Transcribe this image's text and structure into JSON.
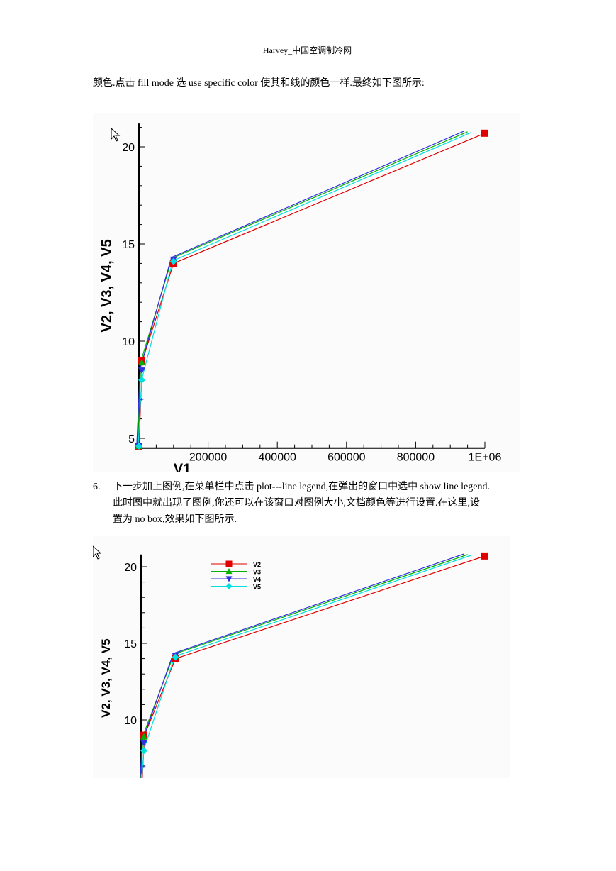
{
  "header": {
    "text": "Harvey_中国空调制冷网"
  },
  "para1": {
    "text": "颜色.点击 fill mode  选 use specific color 使其和线的颜色一样.最终如下图所示:"
  },
  "para2": {
    "number": "6.",
    "lines": [
      "下一步加上图例,在菜单栏中点击 plot---line legend,在弹出的窗口中选中 show line legend.",
      "此时图中就出现了图例,你还可以在该窗口对图例大小,文档颜色等进行设置.在这里,设",
      "置为  no box,效果如下图所示."
    ]
  },
  "chart_data": [
    {
      "type": "line",
      "xlabel": "V1",
      "ylabel": "V2, V3, V4, V5",
      "xlim": [
        0,
        1000000
      ],
      "ylim": [
        4.5,
        21.2
      ],
      "x_tick_labels": [
        "200000",
        "400000",
        "600000",
        "800000",
        "1E+06"
      ],
      "y_tick_labels": [
        "5",
        "10",
        "15",
        "20"
      ],
      "legend": "none",
      "series": [
        {
          "name": "V2",
          "color": "#e00000",
          "marker": "square",
          "x": [
            0,
            10000,
            100000,
            1000000
          ],
          "y": [
            4.6,
            9.0,
            14.0,
            20.7
          ]
        },
        {
          "name": "V3",
          "color": "#00b000",
          "marker": "triangle",
          "x": [
            0,
            10000,
            100000,
            950000
          ],
          "y": [
            4.6,
            8.9,
            14.2,
            20.7
          ]
        },
        {
          "name": "V4",
          "color": "#3030e0",
          "marker": "triangle-down",
          "x": [
            0,
            10000,
            100000,
            940000
          ],
          "y": [
            4.6,
            8.5,
            14.2,
            20.7
          ]
        },
        {
          "name": "V5",
          "color": "#00e0e0",
          "marker": "diamond",
          "x": [
            0,
            10000,
            100000,
            960000
          ],
          "y": [
            4.6,
            8.0,
            14.1,
            20.7
          ]
        }
      ]
    },
    {
      "type": "line",
      "ylabel": "V2, V3, V4, V5",
      "xlim": [
        0,
        1000000
      ],
      "ylim": [
        6.5,
        20.8
      ],
      "y_tick_labels": [
        "10",
        "15",
        "20"
      ],
      "legend": "top-left, no box",
      "series": [
        {
          "name": "V2",
          "color": "#e00000",
          "marker": "square",
          "x": [
            0,
            10000,
            100000,
            1000000
          ],
          "y": [
            4.6,
            9.0,
            14.0,
            20.7
          ]
        },
        {
          "name": "V3",
          "color": "#00b000",
          "marker": "triangle",
          "x": [
            0,
            10000,
            100000,
            950000
          ],
          "y": [
            4.6,
            8.9,
            14.2,
            20.7
          ]
        },
        {
          "name": "V4",
          "color": "#3030e0",
          "marker": "triangle-down",
          "x": [
            0,
            10000,
            100000,
            940000
          ],
          "y": [
            4.6,
            8.5,
            14.2,
            20.7
          ]
        },
        {
          "name": "V5",
          "color": "#00e0e0",
          "marker": "diamond",
          "x": [
            0,
            10000,
            100000,
            960000
          ],
          "y": [
            4.6,
            8.0,
            14.1,
            20.7
          ]
        }
      ]
    }
  ]
}
